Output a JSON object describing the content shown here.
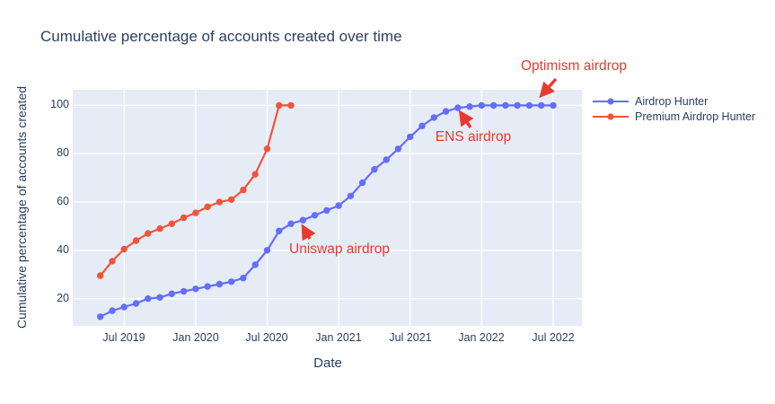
{
  "chart_data": {
    "type": "line",
    "title": "Cumulative percentage of accounts created over time",
    "xlabel": "Date",
    "ylabel": "Cumulative percentage of accounts created",
    "x_tick_labels": [
      "Jul 2019",
      "Jan 2020",
      "Jul 2020",
      "Jan 2021",
      "Jul 2021",
      "Jan 2022",
      "Jul 2022"
    ],
    "y_ticks": [
      20,
      40,
      60,
      80,
      100
    ],
    "ylim": [
      8.7,
      106.5
    ],
    "xlim": [
      "2019-02",
      "2022-09"
    ],
    "grid": true,
    "legend_position": "outside-top-right",
    "plot_bg_color": "#e5ecf6",
    "grid_color": "#ffffff",
    "text_color": "#2a3f5f",
    "annotation_color": "#e73b2d",
    "series": [
      {
        "name": "Airdrop Hunter",
        "color": "#636efa",
        "x": [
          "2019-05",
          "2019-06",
          "2019-07",
          "2019-08",
          "2019-09",
          "2019-10",
          "2019-11",
          "2019-12",
          "2020-01",
          "2020-02",
          "2020-03",
          "2020-04",
          "2020-05",
          "2020-06",
          "2020-07",
          "2020-08",
          "2020-09",
          "2020-10",
          "2020-11",
          "2020-12",
          "2021-01",
          "2021-02",
          "2021-03",
          "2021-04",
          "2021-05",
          "2021-06",
          "2021-07",
          "2021-08",
          "2021-09",
          "2021-10",
          "2021-11",
          "2021-12",
          "2022-01",
          "2022-02",
          "2022-03",
          "2022-04",
          "2022-05",
          "2022-06",
          "2022-07"
        ],
        "values": [
          12.5,
          15,
          16.5,
          18,
          20,
          20.5,
          22,
          23,
          24,
          25,
          26,
          27,
          28.5,
          34,
          40,
          48,
          51,
          52.5,
          54.5,
          56.5,
          58.5,
          62.5,
          68,
          73.5,
          77.5,
          82,
          87,
          91.5,
          95,
          97.5,
          99,
          99.5,
          100,
          100,
          100,
          100,
          100,
          100,
          100
        ]
      },
      {
        "name": "Premium Airdrop Hunter",
        "color": "#ef553b",
        "x": [
          "2019-05",
          "2019-06",
          "2019-07",
          "2019-08",
          "2019-09",
          "2019-10",
          "2019-11",
          "2019-12",
          "2020-01",
          "2020-02",
          "2020-03",
          "2020-04",
          "2020-05",
          "2020-06",
          "2020-07",
          "2020-08",
          "2020-09"
        ],
        "values": [
          29.5,
          35.5,
          40.5,
          44,
          47,
          49,
          51,
          53.5,
          55.5,
          58,
          60,
          61,
          65,
          71.5,
          82,
          100,
          100
        ]
      }
    ],
    "annotations": [
      {
        "text": "Uniswap airdrop"
      },
      {
        "text": "ENS airdrop"
      },
      {
        "text": "Optimism airdrop"
      }
    ]
  }
}
